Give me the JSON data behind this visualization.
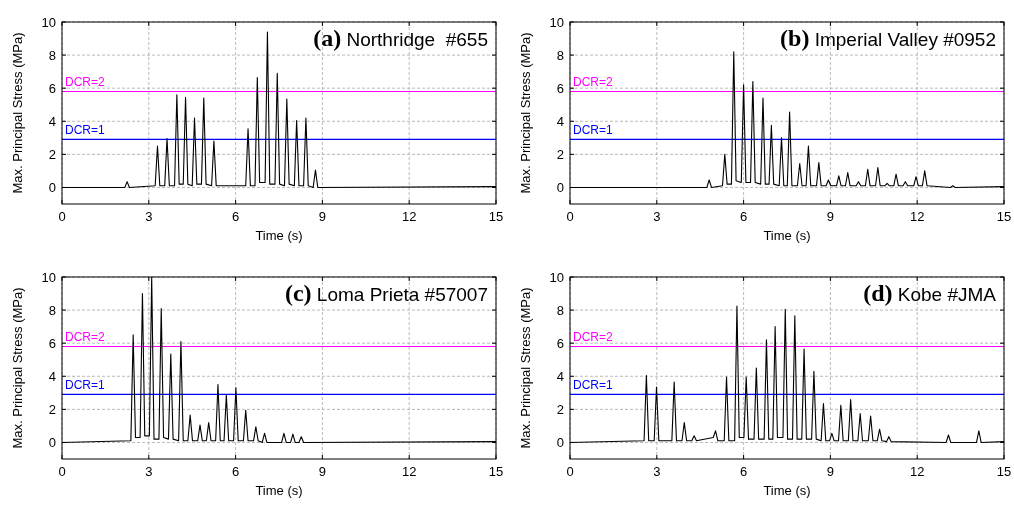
{
  "chart_data": [
    {
      "type": "line",
      "title": "(a) Northridge  #655",
      "xlabel": "Time (s)",
      "ylabel": "Max. Principal Stress (MPa)",
      "xlim": [
        0,
        15
      ],
      "xticks": [
        0,
        3,
        6,
        9,
        12,
        15
      ],
      "ylim": [
        -1,
        10
      ],
      "yticks": [
        0,
        2,
        4,
        6,
        8,
        10
      ],
      "grid": true,
      "ref_lines": [
        {
          "axis": "y",
          "value": 5.8,
          "color": "#ff00ff"
        },
        {
          "axis": "y",
          "value": 2.9,
          "color": "#0000ff"
        }
      ],
      "annotations": [
        {
          "text": "DCR=2",
          "y": 5.8
        },
        {
          "text": "DCR=1",
          "y": 2.9
        }
      ],
      "series": [
        {
          "color": "#000000",
          "x": [
            0,
            2.17,
            2.25,
            2.33,
            3.22,
            3.3,
            3.38,
            3.55,
            3.63,
            3.71,
            3.89,
            3.97,
            4.05,
            4.19,
            4.27,
            4.35,
            4.5,
            4.58,
            4.66,
            4.82,
            4.9,
            4.98,
            5.17,
            5.25,
            5.33,
            6.35,
            6.43,
            6.51,
            6.67,
            6.75,
            6.83,
            7.02,
            7.1,
            7.18,
            7.36,
            7.44,
            7.52,
            7.69,
            7.77,
            7.85,
            8.03,
            8.11,
            8.19,
            8.35,
            8.43,
            8.51,
            8.68,
            8.76,
            8.84,
            15
          ],
          "values": [
            0,
            0,
            0.35,
            0,
            0.1,
            2.5,
            0.1,
            0.1,
            2.95,
            0.1,
            0.1,
            5.6,
            0.2,
            0.2,
            5.45,
            0.2,
            0.1,
            4.2,
            0.2,
            0.2,
            5.4,
            0.2,
            0.1,
            2.8,
            0.1,
            0.1,
            3.55,
            0.1,
            0.1,
            6.65,
            0.3,
            0.3,
            9.4,
            0.2,
            0.2,
            6.9,
            0.2,
            0.1,
            5.35,
            0.2,
            0.1,
            4.05,
            0.1,
            0.1,
            4.2,
            0.1,
            0,
            1.05,
            0,
            0.05
          ]
        }
      ]
    },
    {
      "type": "line",
      "title": "(b) Imperial Valley #0952",
      "xlabel": "Time (s)",
      "ylabel": "Max. Principal Stress (MPa)",
      "xlim": [
        0,
        15
      ],
      "xticks": [
        0,
        3,
        6,
        9,
        12,
        15
      ],
      "ylim": [
        -1,
        10
      ],
      "yticks": [
        0,
        2,
        4,
        6,
        8,
        10
      ],
      "grid": true,
      "ref_lines": [
        {
          "axis": "y",
          "value": 5.8,
          "color": "#ff00ff"
        },
        {
          "axis": "y",
          "value": 2.9,
          "color": "#0000ff"
        }
      ],
      "annotations": [
        {
          "text": "DCR=2",
          "y": 5.8
        },
        {
          "text": "DCR=1",
          "y": 2.9
        }
      ],
      "series": [
        {
          "color": "#000000",
          "x": [
            0,
            4.73,
            4.81,
            4.89,
            5.27,
            5.35,
            5.43,
            5.58,
            5.66,
            5.74,
            5.92,
            6.0,
            6.08,
            6.24,
            6.32,
            6.4,
            6.59,
            6.67,
            6.75,
            6.88,
            6.96,
            7.04,
            7.23,
            7.31,
            7.39,
            7.51,
            7.59,
            7.67,
            7.86,
            7.94,
            8.02,
            8.16,
            8.24,
            8.32,
            8.52,
            8.6,
            8.68,
            8.85,
            8.93,
            9.01,
            9.21,
            9.29,
            9.37,
            9.52,
            9.6,
            9.68,
            9.89,
            9.97,
            10.05,
            10.21,
            10.29,
            10.37,
            10.56,
            10.64,
            10.72,
            10.88,
            10.96,
            11.04,
            11.19,
            11.27,
            11.35,
            11.51,
            11.59,
            11.67,
            11.88,
            11.96,
            12.04,
            12.18,
            12.26,
            12.34,
            13.15,
            13.23,
            13.31,
            15
          ],
          "values": [
            0,
            0,
            0.45,
            0,
            0.1,
            2.0,
            0.2,
            0.2,
            8.2,
            0.4,
            0.3,
            6.2,
            0.3,
            0.3,
            6.4,
            0.3,
            0.2,
            5.4,
            0.2,
            0.2,
            3.75,
            0.2,
            0.1,
            3.0,
            0.1,
            0.1,
            4.55,
            0.1,
            0.1,
            1.45,
            0.1,
            0.1,
            2.5,
            0.1,
            0.1,
            1.5,
            0.1,
            0.1,
            0.45,
            0.1,
            0.1,
            0.7,
            0.1,
            0.1,
            0.9,
            0.1,
            0.1,
            0.35,
            0.1,
            0.1,
            1.1,
            0.1,
            0.1,
            1.2,
            0.1,
            0.1,
            0.25,
            0.1,
            0.1,
            0.8,
            0.1,
            0.1,
            0.35,
            0.1,
            0.1,
            0.65,
            0.1,
            0.1,
            1.0,
            0.1,
            0,
            0.1,
            0,
            0.05
          ]
        }
      ]
    },
    {
      "type": "line",
      "title": "(c) Loma Prieta #57007",
      "xlabel": "Time (s)",
      "ylabel": "Max. Principal Stress (MPa)",
      "xlim": [
        0,
        15
      ],
      "xticks": [
        0,
        3,
        6,
        9,
        12,
        15
      ],
      "ylim": [
        -1,
        10
      ],
      "yticks": [
        0,
        2,
        4,
        6,
        8,
        10
      ],
      "grid": true,
      "ref_lines": [
        {
          "axis": "y",
          "value": 5.8,
          "color": "#ff00ff"
        },
        {
          "axis": "y",
          "value": 2.9,
          "color": "#0000ff"
        }
      ],
      "annotations": [
        {
          "text": "DCR=2",
          "y": 5.8
        },
        {
          "text": "DCR=1",
          "y": 2.9
        }
      ],
      "series": [
        {
          "color": "#000000",
          "x": [
            0,
            2.38,
            2.46,
            2.54,
            2.7,
            2.78,
            2.86,
            3.02,
            3.1,
            3.18,
            3.35,
            3.43,
            3.51,
            3.68,
            3.76,
            3.84,
            4.03,
            4.11,
            4.19,
            4.35,
            4.43,
            4.51,
            4.69,
            4.77,
            4.85,
            4.99,
            5.07,
            5.15,
            5.31,
            5.39,
            5.47,
            5.6,
            5.68,
            5.76,
            5.93,
            6.01,
            6.09,
            6.27,
            6.35,
            6.43,
            6.62,
            6.7,
            6.78,
            6.92,
            7.0,
            7.08,
            7.59,
            7.67,
            7.75,
            7.9,
            7.98,
            8.06,
            8.19,
            8.27,
            8.35,
            15
          ],
          "values": [
            0,
            0.1,
            6.5,
            0.3,
            0.3,
            9.0,
            0.4,
            0.4,
            10.0,
            0.2,
            0.2,
            8.1,
            0.3,
            0.2,
            5.35,
            0.2,
            0.1,
            6.1,
            0.1,
            0.1,
            1.65,
            0.1,
            0.1,
            1.05,
            0.1,
            0.1,
            1.2,
            0.1,
            0.1,
            3.5,
            0.1,
            0.1,
            2.85,
            0.1,
            0.1,
            3.3,
            0.1,
            0.1,
            1.95,
            0.1,
            0.1,
            0.95,
            0.1,
            0,
            0.55,
            0,
            0,
            0.55,
            0,
            0,
            0.5,
            0,
            0,
            0.35,
            0,
            0.05
          ]
        }
      ]
    },
    {
      "type": "line",
      "title": "(d) Kobe #JMA",
      "xlabel": "Time (s)",
      "ylabel": "Max. Principal Stress (MPa)",
      "xlim": [
        0,
        15
      ],
      "xticks": [
        0,
        3,
        6,
        9,
        12,
        15
      ],
      "ylim": [
        -1,
        10
      ],
      "yticks": [
        0,
        2,
        4,
        6,
        8,
        10
      ],
      "grid": true,
      "ref_lines": [
        {
          "axis": "y",
          "value": 5.8,
          "color": "#ff00ff"
        },
        {
          "axis": "y",
          "value": 2.9,
          "color": "#0000ff"
        }
      ],
      "annotations": [
        {
          "text": "DCR=2",
          "y": 5.8
        },
        {
          "text": "DCR=1",
          "y": 2.9
        }
      ],
      "series": [
        {
          "color": "#000000",
          "x": [
            0,
            2.56,
            2.64,
            2.72,
            2.91,
            2.99,
            3.07,
            3.52,
            3.6,
            3.68,
            3.87,
            3.95,
            4.03,
            4.21,
            4.29,
            4.37,
            4.95,
            5.03,
            5.11,
            5.33,
            5.41,
            5.49,
            5.69,
            5.77,
            5.85,
            6.01,
            6.09,
            6.17,
            6.36,
            6.44,
            6.52,
            6.71,
            6.79,
            6.87,
            7.01,
            7.09,
            7.17,
            7.36,
            7.44,
            7.52,
            7.69,
            7.77,
            7.85,
            8.01,
            8.09,
            8.17,
            8.35,
            8.43,
            8.51,
            8.68,
            8.76,
            8.84,
            8.97,
            9.05,
            9.13,
            9.28,
            9.36,
            9.44,
            9.62,
            9.7,
            9.78,
            9.95,
            10.03,
            10.11,
            10.31,
            10.39,
            10.47,
            10.62,
            10.7,
            10.78,
            10.94,
            11.02,
            11.1,
            13.0,
            13.08,
            13.16,
            14.05,
            14.13,
            14.21,
            15
          ],
          "values": [
            0,
            0.1,
            4.05,
            0.1,
            0.1,
            3.35,
            0.1,
            0.1,
            3.65,
            0.1,
            0.1,
            1.2,
            0.1,
            0.1,
            0.4,
            0.1,
            0.3,
            0.7,
            0.1,
            0.1,
            3.95,
            0.1,
            0.1,
            8.25,
            0.3,
            0.3,
            3.95,
            0.2,
            0.2,
            4.5,
            0.2,
            0.2,
            6.2,
            0.2,
            0.2,
            7.0,
            0.3,
            0.3,
            8.05,
            0.2,
            0.2,
            7.65,
            0.2,
            0.2,
            5.65,
            0.2,
            0.2,
            4.3,
            0.2,
            0.1,
            2.35,
            0.1,
            0.1,
            0.55,
            0.1,
            0.1,
            2.25,
            0.1,
            0.1,
            2.6,
            0.1,
            0.1,
            1.75,
            0.1,
            0.1,
            1.6,
            0.1,
            0.1,
            0.8,
            0.1,
            0.05,
            0.35,
            0.05,
            0,
            0.45,
            0,
            0,
            0.7,
            0,
            0.05
          ]
        }
      ]
    }
  ]
}
